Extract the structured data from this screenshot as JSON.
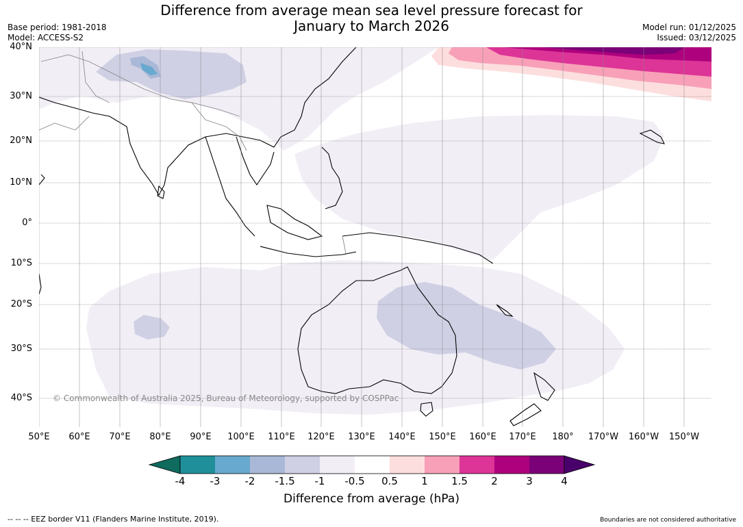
{
  "title_line1": "Difference from average mean sea level pressure forecast for",
  "title_line2": "January to March 2026",
  "base_period": "Base period: 1981-2018",
  "model": "Model: ACCESS-S2",
  "model_run": "Model run: 01/12/2025",
  "issued": "Issued: 03/12/2025",
  "copyright": "© Commonwealth of Australia 2025, Bureau of Meteorology, supported by COSPPac",
  "lon_labels": [
    "50°E",
    "60°E",
    "70°E",
    "80°E",
    "90°E",
    "100°E",
    "110°E",
    "120°E",
    "130°E",
    "140°E",
    "150°E",
    "160°E",
    "170°E",
    "180°",
    "170°W",
    "160°W",
    "150°W"
  ],
  "lat_labels": [
    "40°N",
    "30°N",
    "20°N",
    "10°N",
    "0°",
    "10°S",
    "20°S",
    "30°S",
    "40°S"
  ],
  "colorbar": {
    "title": "Difference from average (hPa)",
    "tick_labels": [
      "-4",
      "-3",
      "-2",
      "-1.5",
      "-1",
      "-0.5",
      "0.5",
      "1",
      "1.5",
      "2",
      "3",
      "4"
    ],
    "colors": [
      "#0e6b5e",
      "#1f8f99",
      "#67a9cf",
      "#a9b8d6",
      "#cfd0e4",
      "#f2eef6",
      "#ffffff",
      "#fddede",
      "#f8a0b8",
      "#dd3497",
      "#ae017e",
      "#7a0177",
      "#49006a"
    ]
  },
  "footer_left": "--  --  -- EEZ border V11 (Flanders Marine Institute, 2019).",
  "footer_right": "Boundaries are not considered authoritative"
}
